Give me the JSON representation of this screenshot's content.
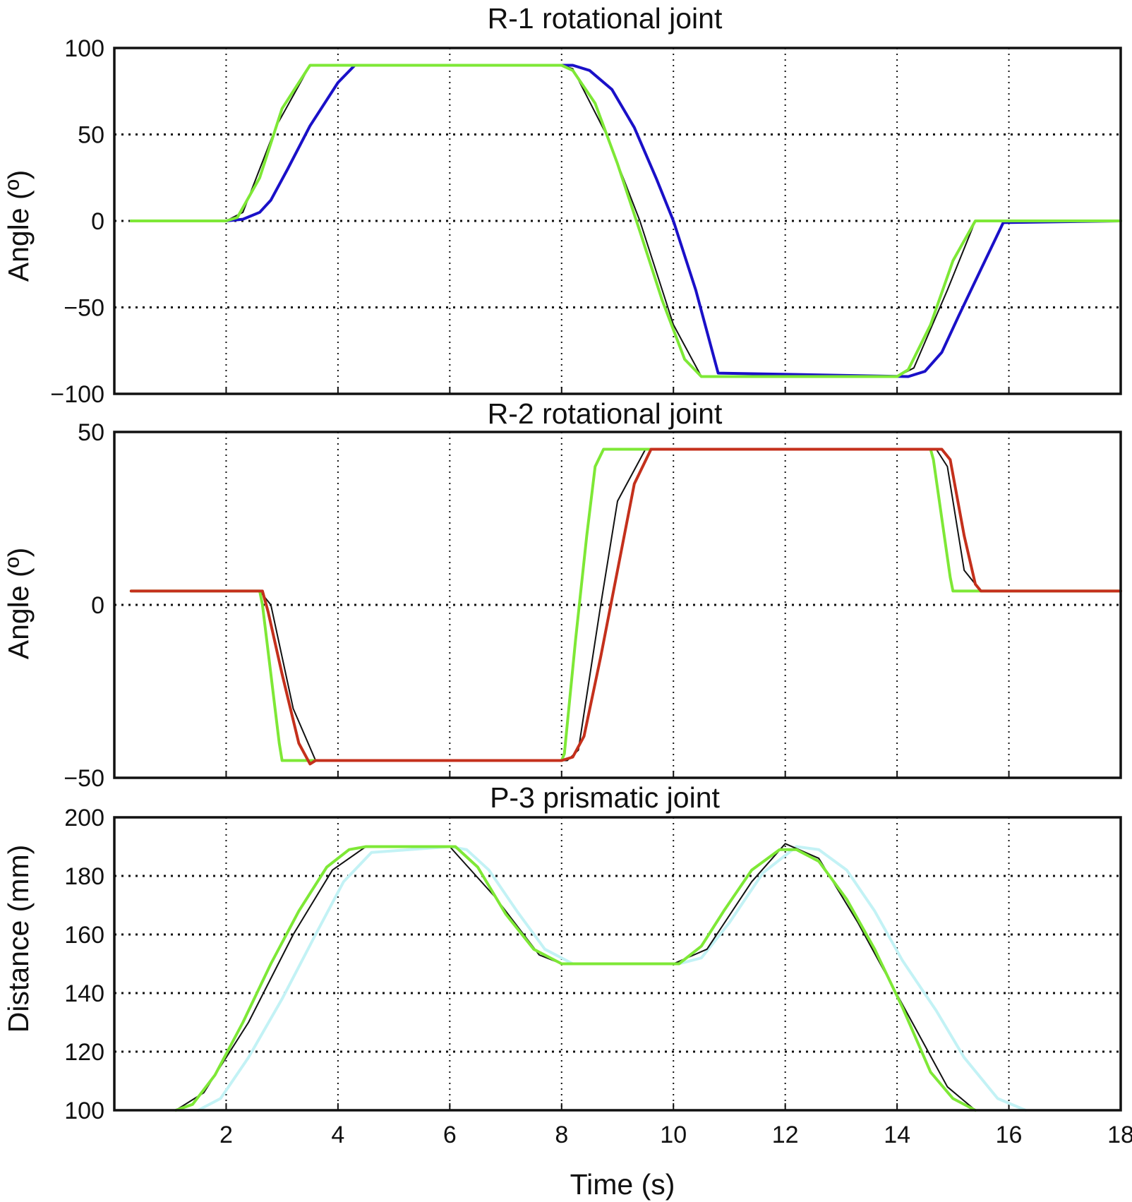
{
  "chart_data": [
    {
      "type": "line",
      "title": "R-1 rotational joint",
      "xlabel": "",
      "ylabel": "Angle (º)",
      "xlim": [
        0,
        18
      ],
      "ylim": [
        -100,
        100
      ],
      "x_ticks": [
        2,
        4,
        6,
        8,
        10,
        12,
        14,
        16
      ],
      "y_ticks": [
        100,
        50,
        0,
        -50,
        -100
      ],
      "y_tick_labels": [
        "100",
        "50",
        "0",
        "−50",
        "−100"
      ],
      "show_x_tick_labels": false,
      "grid": true,
      "series": [
        {
          "color": "#1a10c8",
          "width": 4,
          "x": [
            0.3,
            2.0,
            2.3,
            2.6,
            2.8,
            3.1,
            3.5,
            4.0,
            4.3,
            8.2,
            8.5,
            8.9,
            9.3,
            9.7,
            10.0,
            10.4,
            10.8,
            14.2,
            14.5,
            14.8,
            15.1,
            15.5,
            15.9,
            18.0
          ],
          "y": [
            0,
            0,
            1,
            5,
            12,
            30,
            55,
            80,
            90,
            90,
            87,
            76,
            54,
            24,
            0,
            -40,
            -88,
            -90,
            -87,
            -76,
            -55,
            -28,
            -1,
            0
          ]
        },
        {
          "color": "#111111",
          "width": 2,
          "x": [
            0.3,
            2.0,
            2.3,
            2.9,
            3.5,
            8.0,
            8.2,
            8.8,
            9.4,
            10.0,
            10.5,
            14.0,
            14.3,
            14.9,
            15.4,
            18.0
          ],
          "y": [
            0,
            0,
            5,
            55,
            90,
            90,
            88,
            50,
            0,
            -60,
            -90,
            -90,
            -85,
            -40,
            0,
            0
          ]
        },
        {
          "color": "#7ee836",
          "width": 4,
          "x": [
            0.3,
            2.0,
            2.2,
            2.6,
            3.0,
            3.5,
            8.0,
            8.2,
            8.6,
            9.0,
            9.4,
            9.8,
            10.2,
            10.5,
            14.0,
            14.2,
            14.6,
            15.0,
            15.4,
            18.0
          ],
          "y": [
            0,
            0,
            2,
            25,
            65,
            90,
            90,
            87,
            68,
            33,
            -6,
            -46,
            -80,
            -90,
            -90,
            -86,
            -60,
            -23,
            0,
            0
          ]
        }
      ]
    },
    {
      "type": "line",
      "title": "R-2 rotational joint",
      "xlabel": "",
      "ylabel": "Angle (º)",
      "xlim": [
        0,
        18
      ],
      "ylim": [
        -50,
        50
      ],
      "x_ticks": [
        2,
        4,
        6,
        8,
        10,
        12,
        14,
        16
      ],
      "y_ticks": [
        50,
        0,
        -50
      ],
      "y_tick_labels": [
        "50",
        "0",
        "−50"
      ],
      "show_x_tick_labels": false,
      "grid": true,
      "series": [
        {
          "color": "#111111",
          "width": 2,
          "x": [
            0.3,
            2.6,
            2.8,
            3.2,
            3.6,
            8.1,
            8.3,
            8.7,
            9.0,
            9.5,
            9.9,
            14.7,
            14.9,
            15.2,
            15.5,
            18.0
          ],
          "y": [
            4,
            4,
            0,
            -30,
            -45,
            -45,
            -42,
            0,
            30,
            45,
            45,
            45,
            40,
            10,
            4,
            4
          ]
        },
        {
          "color": "#7ee836",
          "width": 4,
          "x": [
            0.3,
            2.6,
            2.65,
            2.8,
            2.95,
            3.0,
            8.0,
            8.05,
            8.25,
            8.45,
            8.6,
            8.75,
            9.1,
            14.6,
            14.65,
            14.8,
            14.95,
            15.0,
            18.0
          ],
          "y": [
            4,
            4,
            0,
            -20,
            -40,
            -45,
            -45,
            -43,
            -10,
            20,
            40,
            45,
            45,
            45,
            42,
            25,
            8,
            4,
            4
          ]
        },
        {
          "color": "#c4301c",
          "width": 4,
          "x": [
            0.3,
            2.65,
            2.75,
            3.0,
            3.3,
            3.5,
            3.6,
            8.0,
            8.2,
            8.4,
            8.7,
            9.0,
            9.3,
            9.6,
            14.8,
            14.95,
            15.2,
            15.4,
            15.5,
            18.0
          ],
          "y": [
            4,
            4,
            -2,
            -20,
            -40,
            -46,
            -45,
            -45,
            -44,
            -38,
            -15,
            10,
            35,
            45,
            45,
            42,
            20,
            6,
            4,
            4
          ]
        }
      ]
    },
    {
      "type": "line",
      "title": "P-3 prismatic joint",
      "xlabel": "Time (s)",
      "ylabel": "Distance (mm)",
      "xlim": [
        0,
        18
      ],
      "ylim": [
        100,
        200
      ],
      "x_ticks": [
        2,
        4,
        6,
        8,
        10,
        12,
        14,
        16,
        18
      ],
      "y_ticks": [
        200,
        180,
        160,
        140,
        120,
        100
      ],
      "y_tick_labels": [
        "200",
        "180",
        "160",
        "140",
        "120",
        "100"
      ],
      "show_x_tick_labels": true,
      "grid": true,
      "series": [
        {
          "color": "#c3f2f5",
          "width": 4,
          "x": [
            1.5,
            1.9,
            2.4,
            3.0,
            3.6,
            4.1,
            4.6,
            6.0,
            6.3,
            6.7,
            7.2,
            7.7,
            8.2,
            10.1,
            10.5,
            11.0,
            11.6,
            12.2,
            12.6,
            13.1,
            13.6,
            14.1,
            14.7,
            15.2,
            15.8,
            16.3
          ],
          "y": [
            100,
            104,
            118,
            138,
            160,
            178,
            188,
            190,
            189,
            182,
            168,
            155,
            150,
            150,
            152,
            164,
            181,
            190,
            189,
            182,
            168,
            151,
            134,
            118,
            104,
            100
          ]
        },
        {
          "color": "#111111",
          "width": 2,
          "x": [
            1.1,
            1.6,
            2.4,
            3.2,
            3.9,
            4.5,
            6.0,
            6.8,
            7.6,
            8.0,
            10.0,
            10.6,
            11.4,
            12.0,
            12.6,
            13.3,
            14.1,
            14.9,
            15.4
          ],
          "y": [
            100,
            106,
            130,
            160,
            182,
            190,
            190,
            173,
            153,
            150,
            150,
            155,
            178,
            191,
            186,
            164,
            136,
            108,
            100
          ]
        },
        {
          "color": "#7ee836",
          "width": 4,
          "x": [
            1.1,
            1.4,
            1.8,
            2.3,
            2.8,
            3.3,
            3.8,
            4.2,
            4.5,
            6.1,
            6.5,
            7.0,
            7.5,
            8.0,
            10.1,
            10.5,
            10.9,
            11.4,
            11.9,
            12.2,
            12.6,
            13.1,
            13.6,
            14.1,
            14.6,
            15.0,
            15.4
          ],
          "y": [
            100,
            102,
            112,
            130,
            150,
            168,
            183,
            189,
            190,
            190,
            183,
            167,
            155,
            150,
            150,
            156,
            168,
            182,
            189,
            189,
            185,
            172,
            155,
            135,
            113,
            104,
            100
          ]
        }
      ]
    }
  ]
}
